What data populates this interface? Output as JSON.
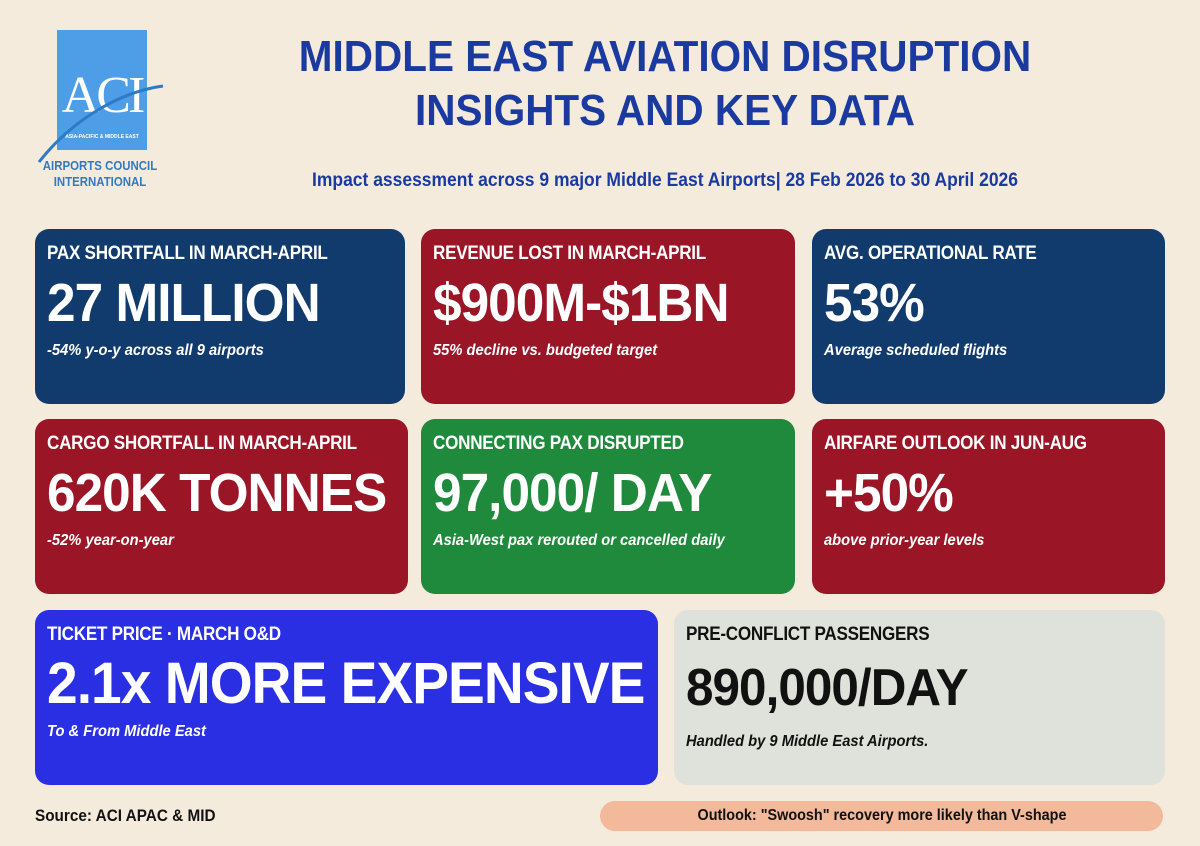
{
  "logo": {
    "mark": "ACI",
    "tagline": "ASIA-PACIFIC & MIDDLE EAST",
    "org_line1": "AIRPORTS COUNCIL",
    "org_line2": "INTERNATIONAL"
  },
  "header": {
    "title_line1": "MIDDLE EAST AVIATION DISRUPTION",
    "title_line2": "INSIGHTS AND KEY DATA",
    "subtitle": "Impact assessment across 9 major Middle East Airports| 28 Feb 2026 to 30 April 2026"
  },
  "cards": [
    {
      "label": "PAX SHORTFALL IN MARCH-APRIL",
      "value": "27 MILLION",
      "note": "-54% y-o-y across all 9 airports"
    },
    {
      "label": "REVENUE LOST IN MARCH-APRIL",
      "value": "$900M-$1BN",
      "note": "55% decline vs. budgeted target"
    },
    {
      "label": "AVG. OPERATIONAL RATE",
      "value": "53%",
      "note": "Average scheduled flights"
    },
    {
      "label": "CARGO SHORTFALL IN MARCH-APRIL",
      "value": "620K TONNES",
      "note": "-52% year-on-year"
    },
    {
      "label": "CONNECTING PAX DISRUPTED",
      "value": "97,000/ DAY",
      "note": "Asia-West pax rerouted or cancelled daily"
    },
    {
      "label": "AIRFARE OUTLOOK IN JUN-AUG",
      "value": "+50%",
      "note": "above prior-year levels"
    },
    {
      "label": "TICKET PRICE · MARCH O&D",
      "value": "2.1x MORE EXPENSIVE",
      "note": "To & From Middle East"
    },
    {
      "label": "PRE-CONFLICT PASSENGERS",
      "value": "890,000/DAY",
      "note": "Handled by 9 Middle East Airports."
    }
  ],
  "footer": {
    "source": "Source: ACI APAC & MID",
    "outlook": "Outlook: \"Swoosh\" recovery more likely than V-shape"
  },
  "colors": {
    "navy": "#123b6d",
    "red": "#9a1526",
    "green": "#1f8a3b",
    "blue": "#2a2fe3",
    "grey": "#dfe2da",
    "title": "#1a3aa0",
    "outlook_pill": "#f2b99a",
    "background": "#f4ebdd"
  }
}
